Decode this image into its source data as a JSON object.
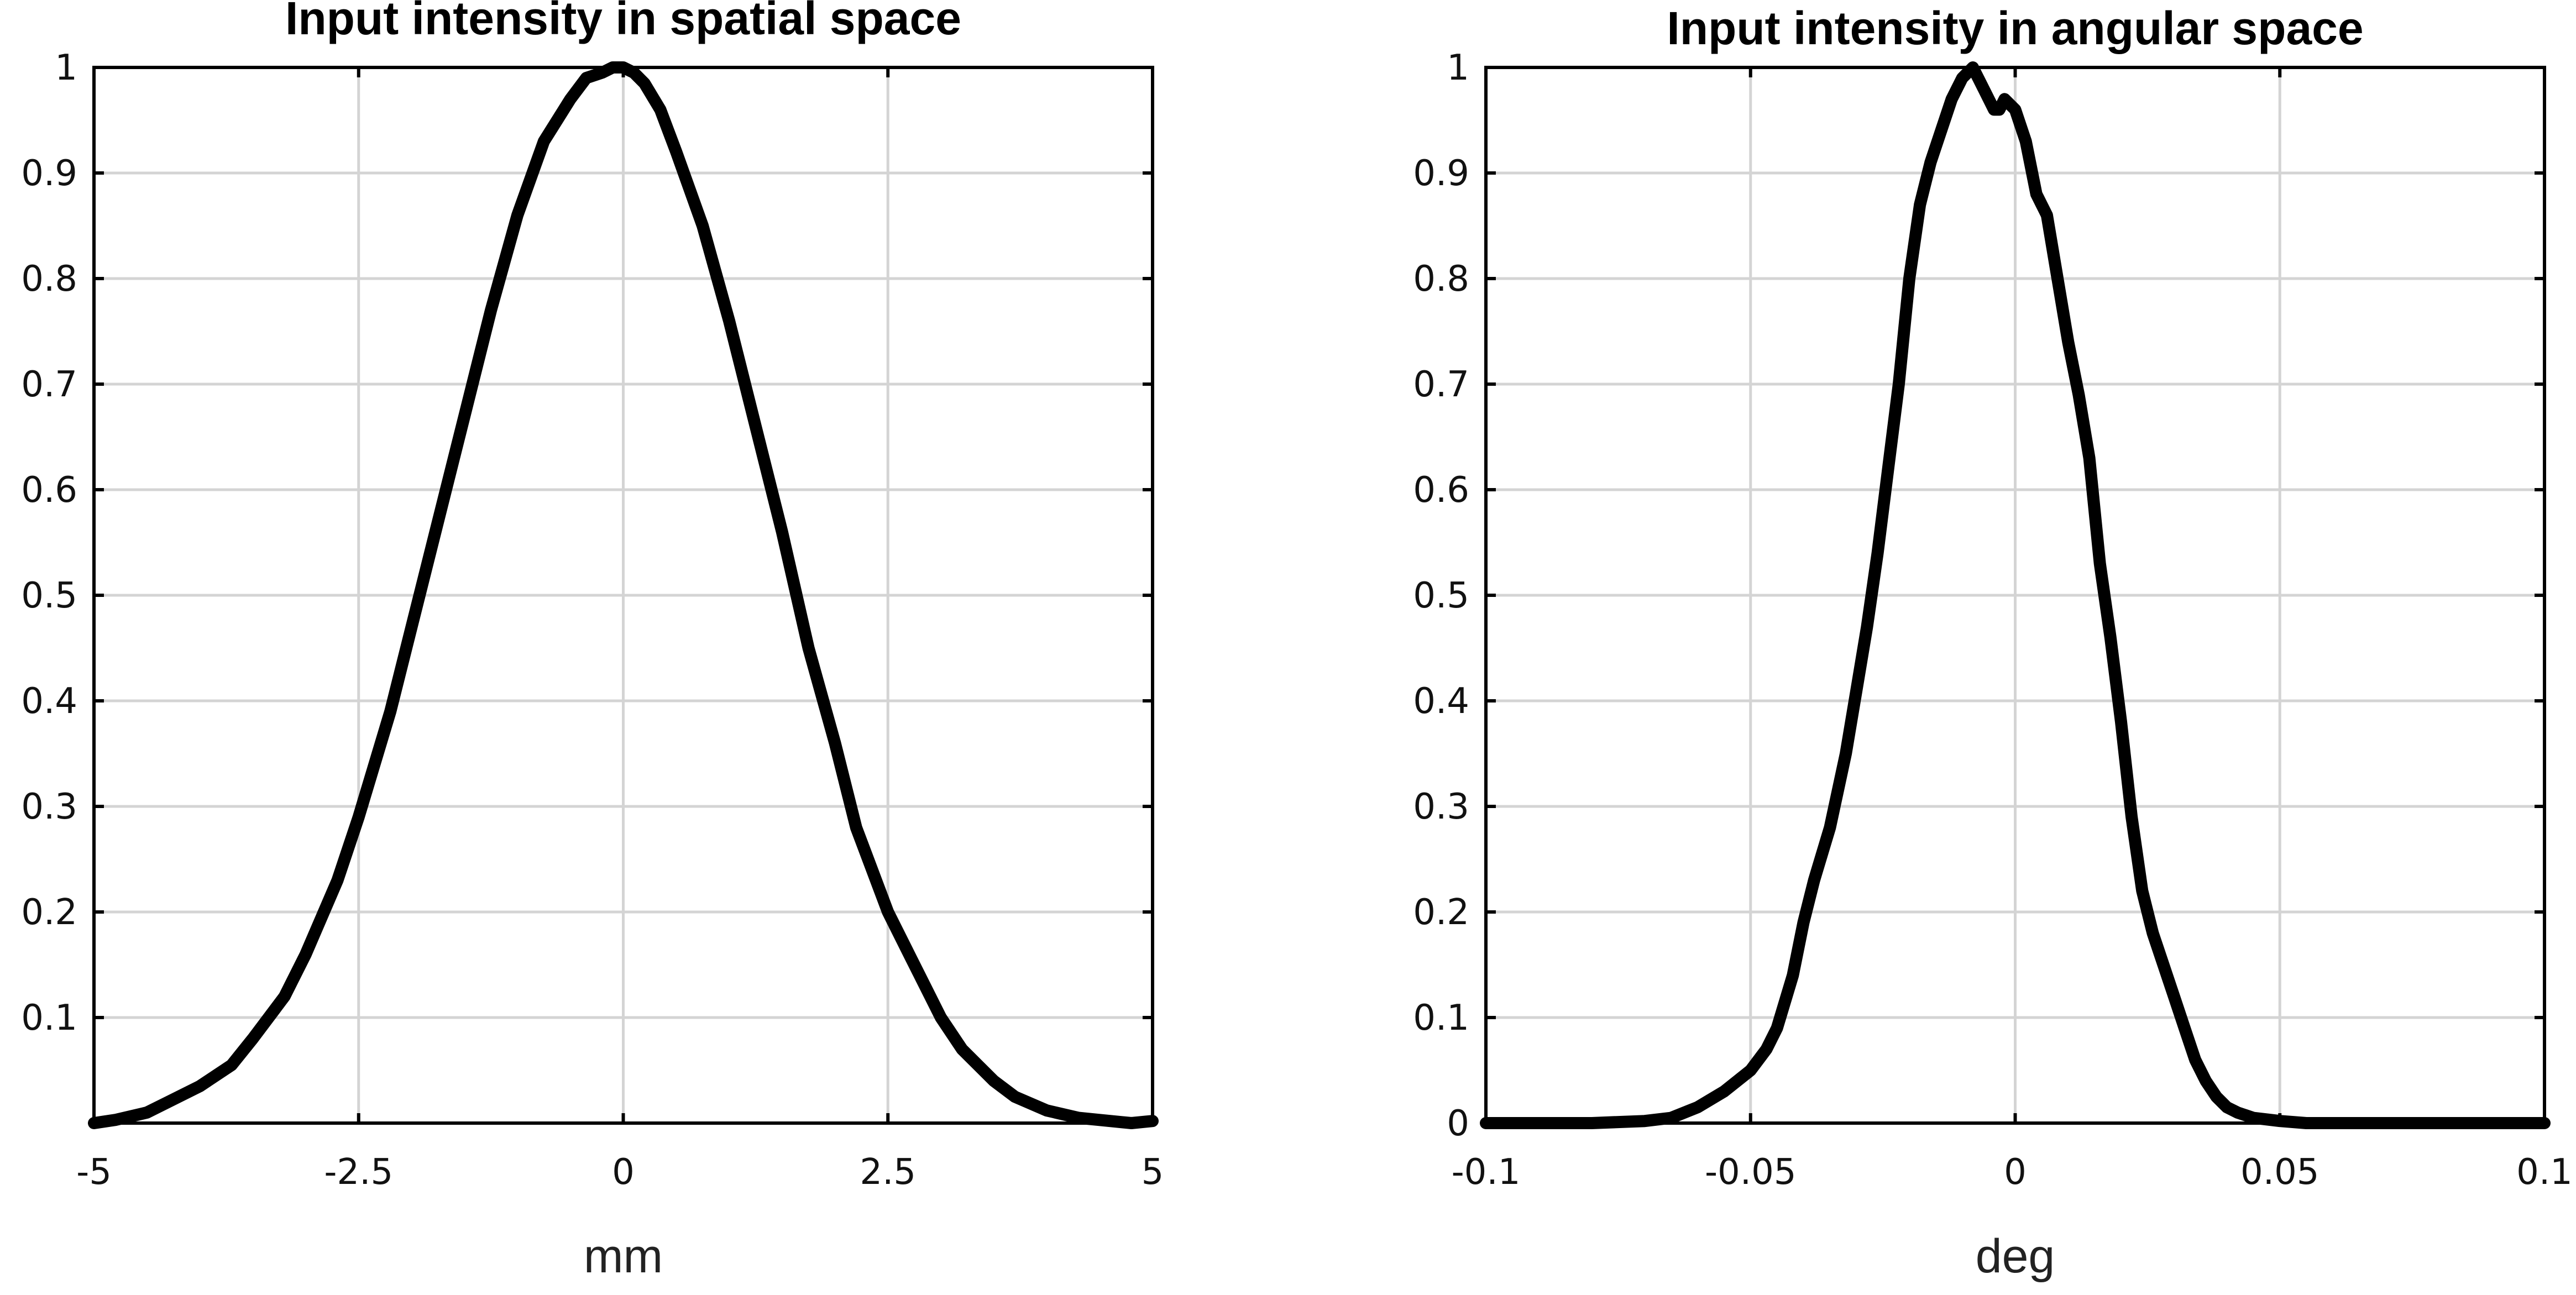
{
  "chart_data": [
    {
      "type": "line",
      "title": "Input intensity in spatial  space",
      "xlabel": "mm",
      "ylabel": "",
      "xlim": [
        -5,
        5
      ],
      "ylim": [
        0,
        1
      ],
      "xticks": [
        -5,
        -2.5,
        0,
        2.5,
        5
      ],
      "xtick_labels": [
        "-5",
        "-2.5",
        "0",
        "2.5",
        "5"
      ],
      "yticks": [
        0.1,
        0.2,
        0.3,
        0.4,
        0.5,
        0.6,
        0.7,
        0.8,
        0.9,
        1
      ],
      "ytick_labels": [
        "0.1",
        "0.2",
        "0.3",
        "0.4",
        "0.5",
        "0.6",
        "0.7",
        "0.8",
        "0.9",
        "1"
      ],
      "grid": true,
      "series": [
        {
          "color": "#000000",
          "x": [
            -5,
            -4.8,
            -4.5,
            -4.3,
            -4,
            -3.7,
            -3.5,
            -3.2,
            -3,
            -2.7,
            -2.5,
            -2.2,
            -2,
            -1.75,
            -1.5,
            -1.25,
            -1,
            -0.75,
            -0.5,
            -0.35,
            -0.2,
            -0.1,
            0,
            0.1,
            0.2,
            0.35,
            0.5,
            0.75,
            1,
            1.25,
            1.5,
            1.75,
            2,
            2.2,
            2.5,
            2.7,
            3,
            3.2,
            3.5,
            3.7,
            4,
            4.3,
            4.5,
            4.8,
            5
          ],
          "y": [
            0,
            0.003,
            0.01,
            0.02,
            0.035,
            0.055,
            0.08,
            0.12,
            0.16,
            0.23,
            0.29,
            0.39,
            0.47,
            0.57,
            0.67,
            0.77,
            0.86,
            0.93,
            0.97,
            0.99,
            0.995,
            1.0,
            1.0,
            0.995,
            0.985,
            0.96,
            0.92,
            0.85,
            0.76,
            0.66,
            0.56,
            0.45,
            0.36,
            0.28,
            0.2,
            0.16,
            0.1,
            0.07,
            0.04,
            0.025,
            0.012,
            0.005,
            0.003,
            0.0,
            0.002
          ]
        }
      ]
    },
    {
      "type": "line",
      "title": "Input intensity in angular  space",
      "xlabel": "deg",
      "ylabel": "",
      "xlim": [
        -0.1,
        0.1
      ],
      "ylim": [
        0,
        1
      ],
      "xticks": [
        -0.1,
        -0.05,
        0,
        0.05,
        0.1
      ],
      "xtick_labels": [
        "-0.1",
        "-0.05",
        "0",
        "0.05",
        "0.1"
      ],
      "yticks": [
        0,
        0.1,
        0.2,
        0.3,
        0.4,
        0.5,
        0.6,
        0.7,
        0.8,
        0.9,
        1
      ],
      "ytick_labels": [
        "0",
        "0.1",
        "0.2",
        "0.3",
        "0.4",
        "0.5",
        "0.6",
        "0.7",
        "0.8",
        "0.9",
        "1"
      ],
      "grid": true,
      "series": [
        {
          "color": "#000000",
          "x": [
            -0.1,
            -0.08,
            -0.07,
            -0.065,
            -0.06,
            -0.055,
            -0.05,
            -0.047,
            -0.045,
            -0.042,
            -0.04,
            -0.038,
            -0.035,
            -0.032,
            -0.03,
            -0.028,
            -0.026,
            -0.024,
            -0.022,
            -0.02,
            -0.018,
            -0.016,
            -0.014,
            -0.012,
            -0.01,
            -0.008,
            -0.006,
            -0.004,
            -0.003,
            -0.002,
            0,
            0.002,
            0.004,
            0.006,
            0.008,
            0.01,
            0.012,
            0.014,
            0.016,
            0.018,
            0.02,
            0.022,
            0.024,
            0.026,
            0.028,
            0.03,
            0.032,
            0.034,
            0.036,
            0.038,
            0.04,
            0.042,
            0.045,
            0.05,
            0.055,
            0.06,
            0.065,
            0.07,
            0.08,
            0.1
          ],
          "y": [
            0,
            0.0,
            0.002,
            0.005,
            0.015,
            0.03,
            0.05,
            0.07,
            0.09,
            0.14,
            0.19,
            0.23,
            0.28,
            0.35,
            0.41,
            0.47,
            0.54,
            0.62,
            0.7,
            0.8,
            0.87,
            0.91,
            0.94,
            0.97,
            0.99,
            1.0,
            0.98,
            0.96,
            0.96,
            0.97,
            0.96,
            0.93,
            0.88,
            0.86,
            0.8,
            0.74,
            0.69,
            0.63,
            0.53,
            0.46,
            0.38,
            0.29,
            0.22,
            0.18,
            0.15,
            0.12,
            0.09,
            0.06,
            0.04,
            0.025,
            0.015,
            0.01,
            0.005,
            0.002,
            0.0,
            0.0,
            0.0,
            0.0,
            0.0,
            0.0
          ]
        }
      ]
    }
  ]
}
